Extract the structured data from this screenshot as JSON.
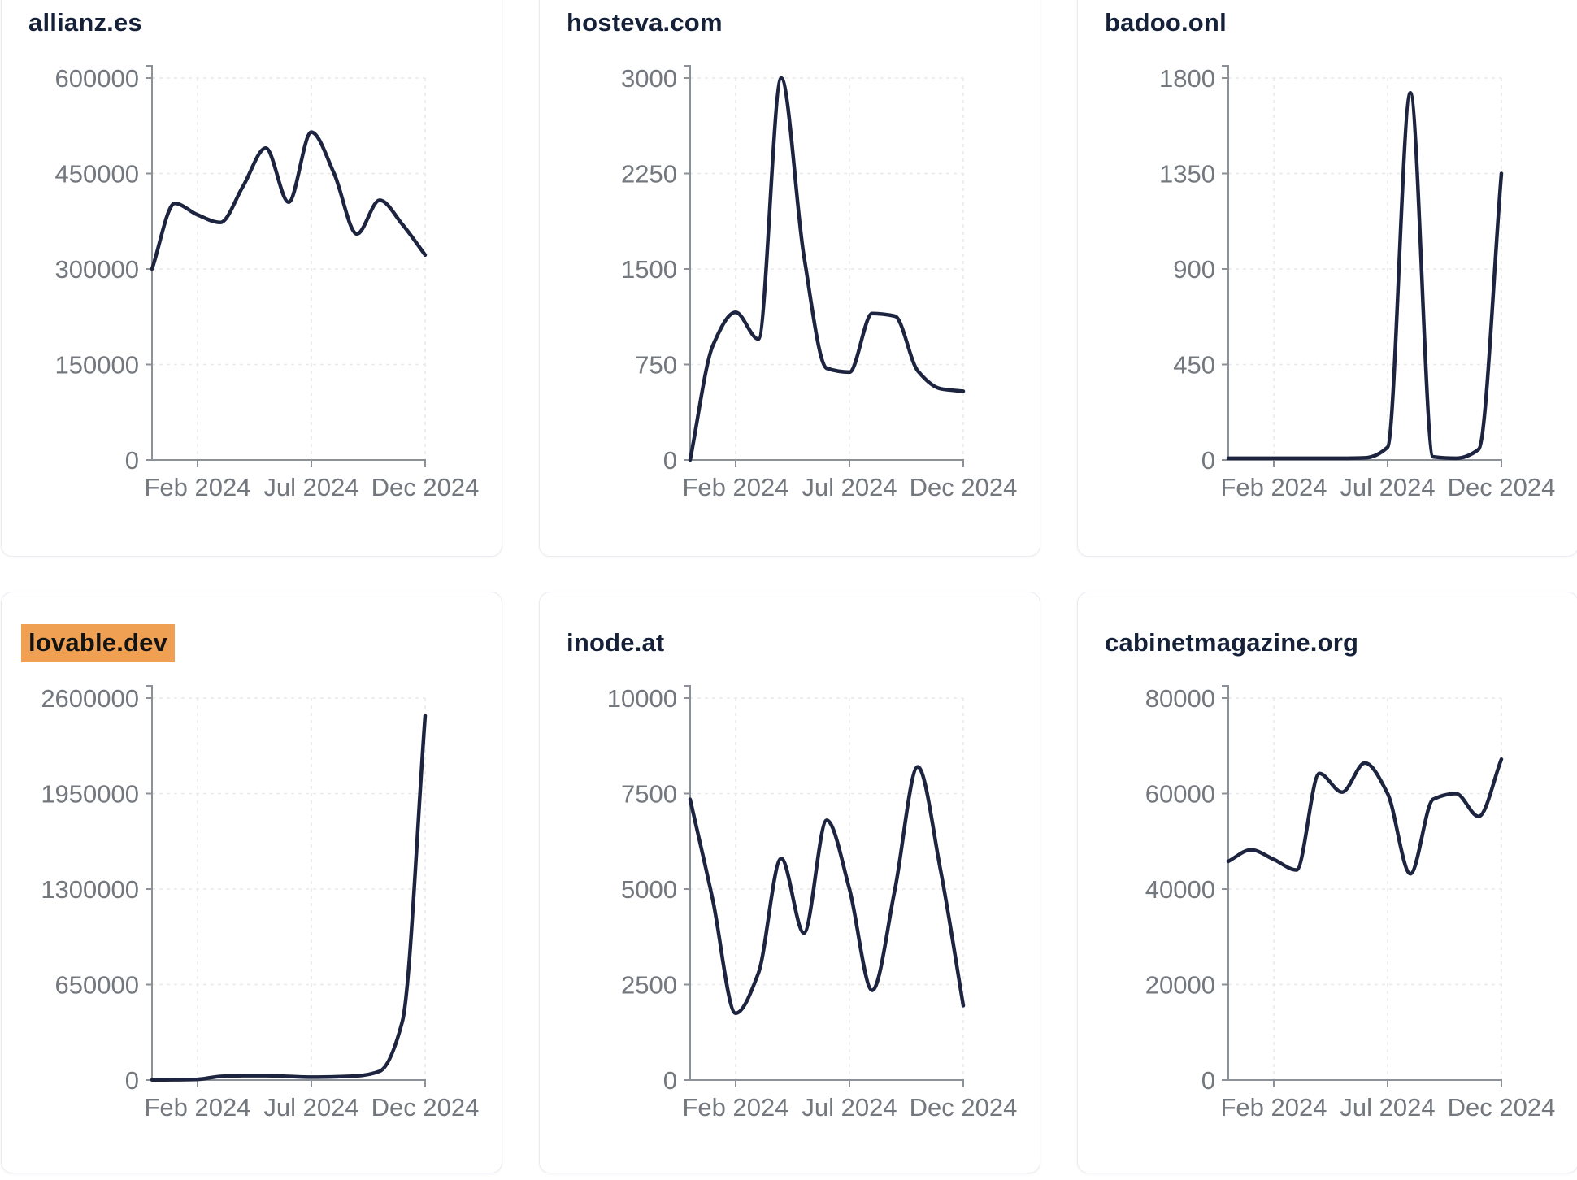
{
  "page": {
    "background": "#ffffff",
    "card_border": "#e8ecf1",
    "title_color": "#152039",
    "highlight_bg": "#f0a052",
    "highlight_text": "#131313",
    "line_color": "#1d2440",
    "axis_color": "#8b9196",
    "grid_color": "#e9e9e9",
    "tick_text_color": "#73777e"
  },
  "chart_data": [
    {
      "type": "line",
      "title": "allianz.es",
      "highlighted": false,
      "x": [
        "Dec 2023",
        "Jan 2024",
        "Feb 2024",
        "Mar 2024",
        "Apr 2024",
        "May 2024",
        "Jun 2024",
        "Jul 2024",
        "Aug 2024",
        "Sep 2024",
        "Oct 2024",
        "Nov 2024",
        "Dec 2024"
      ],
      "values": [
        300000,
        403000,
        385000,
        373000,
        430000,
        490000,
        405000,
        515000,
        450000,
        355000,
        408000,
        370000,
        322000
      ],
      "ylim": [
        0,
        600000
      ],
      "yticks": [
        0,
        150000,
        300000,
        450000,
        600000
      ],
      "xticks": [
        {
          "label": "Feb 2024",
          "month_index": 2
        },
        {
          "label": "Jul 2024",
          "month_index": 7
        },
        {
          "label": "Dec 2024",
          "month_index": 12
        }
      ],
      "grid": "dashed",
      "legend": "none"
    },
    {
      "type": "line",
      "title": "hosteva.com",
      "highlighted": false,
      "x": [
        "Dec 2023",
        "Jan 2024",
        "Feb 2024",
        "Mar 2024",
        "Apr 2024",
        "May 2024",
        "Jun 2024",
        "Jul 2024",
        "Aug 2024",
        "Sep 2024",
        "Oct 2024",
        "Nov 2024",
        "Dec 2024"
      ],
      "values": [
        0,
        900,
        1160,
        950,
        3000,
        1600,
        720,
        690,
        1150,
        1130,
        700,
        560,
        540
      ],
      "ylim": [
        0,
        3000
      ],
      "yticks": [
        0,
        750,
        1500,
        2250,
        3000
      ],
      "xticks": [
        {
          "label": "Feb 2024",
          "month_index": 2
        },
        {
          "label": "Jul 2024",
          "month_index": 7
        },
        {
          "label": "Dec 2024",
          "month_index": 12
        }
      ],
      "grid": "dashed",
      "legend": "none"
    },
    {
      "type": "line",
      "title": "badoo.onl",
      "highlighted": false,
      "x": [
        "Dec 2023",
        "Jan 2024",
        "Feb 2024",
        "Mar 2024",
        "Apr 2024",
        "May 2024",
        "Jun 2024",
        "Jul 2024",
        "Aug 2024",
        "Sep 2024",
        "Oct 2024",
        "Nov 2024",
        "Dec 2024"
      ],
      "values": [
        8,
        8,
        8,
        8,
        8,
        8,
        10,
        60,
        1730,
        15,
        8,
        50,
        1350
      ],
      "ylim": [
        0,
        1800
      ],
      "yticks": [
        0,
        450,
        900,
        1350,
        1800
      ],
      "xticks": [
        {
          "label": "Feb 2024",
          "month_index": 2
        },
        {
          "label": "Jul 2024",
          "month_index": 7
        },
        {
          "label": "Dec 2024",
          "month_index": 12
        }
      ],
      "grid": "dashed",
      "legend": "none"
    },
    {
      "type": "line",
      "title": "lovable.dev",
      "highlighted": true,
      "x": [
        "Dec 2023",
        "Jan 2024",
        "Feb 2024",
        "Mar 2024",
        "Apr 2024",
        "May 2024",
        "Jun 2024",
        "Jul 2024",
        "Aug 2024",
        "Sep 2024",
        "Oct 2024",
        "Nov 2024",
        "Dec 2024"
      ],
      "values": [
        1000,
        2000,
        5000,
        25000,
        30000,
        30000,
        25000,
        20000,
        22000,
        28000,
        60000,
        400000,
        2480000
      ],
      "ylim": [
        0,
        2600000
      ],
      "yticks": [
        0,
        650000,
        1300000,
        1950000,
        2600000
      ],
      "xticks": [
        {
          "label": "Feb 2024",
          "month_index": 2
        },
        {
          "label": "Jul 2024",
          "month_index": 7
        },
        {
          "label": "Dec 2024",
          "month_index": 12
        }
      ],
      "grid": "dashed",
      "legend": "none"
    },
    {
      "type": "line",
      "title": "inode.at",
      "highlighted": false,
      "x": [
        "Dec 2023",
        "Jan 2024",
        "Feb 2024",
        "Mar 2024",
        "Apr 2024",
        "May 2024",
        "Jun 2024",
        "Jul 2024",
        "Aug 2024",
        "Sep 2024",
        "Oct 2024",
        "Nov 2024",
        "Dec 2024"
      ],
      "values": [
        7350,
        4700,
        1750,
        2800,
        5800,
        3850,
        6800,
        5000,
        2350,
        5000,
        8200,
        5500,
        1950
      ],
      "ylim": [
        0,
        10000
      ],
      "yticks": [
        0,
        2500,
        5000,
        7500,
        10000
      ],
      "xticks": [
        {
          "label": "Feb 2024",
          "month_index": 2
        },
        {
          "label": "Jul 2024",
          "month_index": 7
        },
        {
          "label": "Dec 2024",
          "month_index": 12
        }
      ],
      "grid": "dashed",
      "legend": "none"
    },
    {
      "type": "line",
      "title": "cabinetmagazine.org",
      "highlighted": false,
      "x": [
        "Dec 2023",
        "Jan 2024",
        "Feb 2024",
        "Mar 2024",
        "Apr 2024",
        "May 2024",
        "Jun 2024",
        "Jul 2024",
        "Aug 2024",
        "Sep 2024",
        "Oct 2024",
        "Nov 2024",
        "Dec 2024"
      ],
      "values": [
        45800,
        48200,
        46200,
        44000,
        64200,
        60300,
        66400,
        60000,
        43200,
        58800,
        60000,
        55200,
        67200
      ],
      "ylim": [
        0,
        80000
      ],
      "yticks": [
        0,
        20000,
        40000,
        60000,
        80000
      ],
      "xticks": [
        {
          "label": "Feb 2024",
          "month_index": 2
        },
        {
          "label": "Jul 2024",
          "month_index": 7
        },
        {
          "label": "Dec 2024",
          "month_index": 12
        }
      ],
      "grid": "dashed",
      "legend": "none"
    }
  ]
}
